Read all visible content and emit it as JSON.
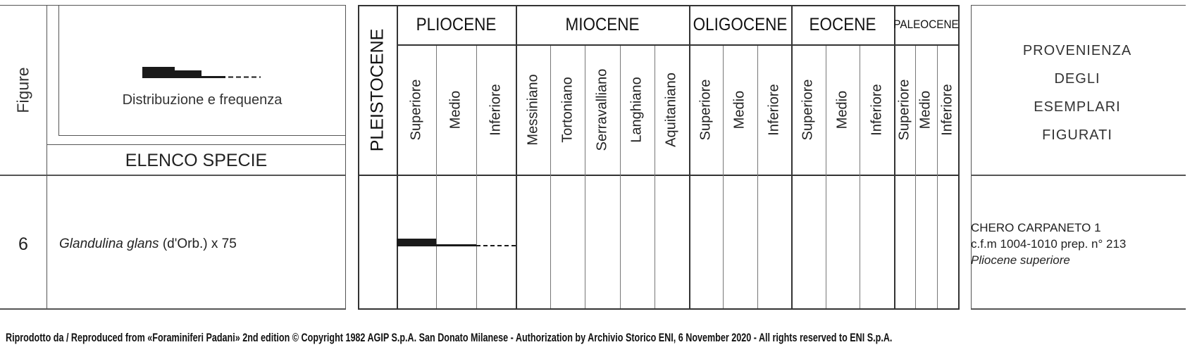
{
  "header": {
    "figure_label": "Figure",
    "distribution_label": "Distribuzione e frequenza",
    "species_list_label": "ELENCO SPECIE",
    "pleistocene_label": "PLEISTOCENE",
    "provenance_lines": [
      "PROVENIENZA",
      "DEGLI",
      "ESEMPLARI",
      "FIGURATI"
    ]
  },
  "epochs": [
    {
      "name": "PLIOCENE",
      "stages": [
        "Superiore",
        "Medio",
        "Inferiore"
      ]
    },
    {
      "name": "MIOCENE",
      "stages": [
        "Messiniano",
        "Tortoniano",
        "Serravalliano",
        "Langhiano",
        "Aquitaniano"
      ]
    },
    {
      "name": "OLIGOCENE",
      "stages": [
        "Superiore",
        "Medio",
        "Inferiore"
      ]
    },
    {
      "name": "EOCENE",
      "stages": [
        "Superiore",
        "Medio",
        "Inferiore"
      ]
    },
    {
      "name": "PALEOCENE",
      "stages": [
        "Superiore",
        "Medio",
        "Inferiore"
      ]
    }
  ],
  "species": [
    {
      "figure": "6",
      "name_italic": "Glandulina glans",
      "name_rest": " (d'Orb.) x 75",
      "distribution": {
        "Pliocene Superiore": "frequent",
        "Pliocene Medio": "rare",
        "Pliocene Inferiore": "uncertain"
      },
      "provenance": [
        "CHERO CARPANETO 1",
        "c.f.m 1004-1010 prep. n° 213",
        "Pliocene superiore"
      ]
    }
  ],
  "footer": "Riprodotto da / Reproduced from «Foraminiferi Padani» 2nd edition © Copyright 1982 AGIP S.p.A. San Donato Milanese - Authorization by Archivio Storico ENI, 6 November 2020 - All rights reserved to ENI S.p.A."
}
